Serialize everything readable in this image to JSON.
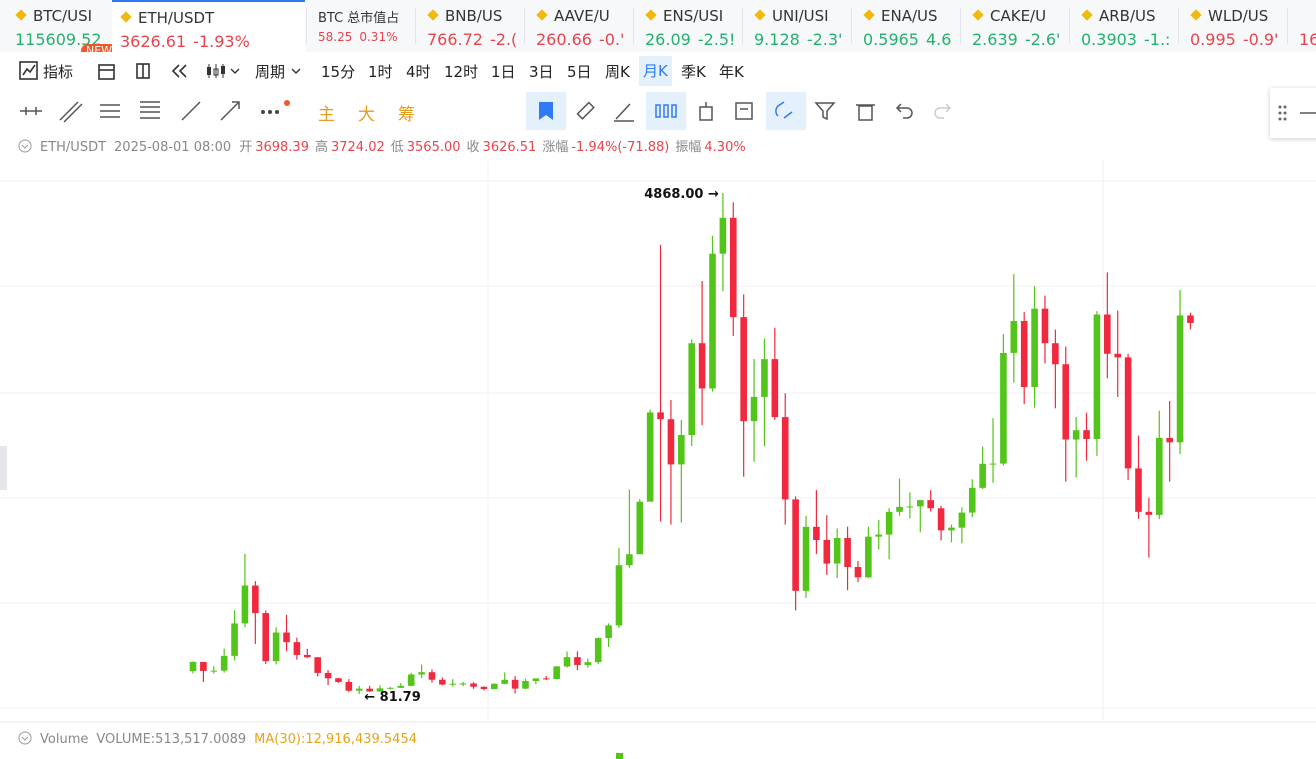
{
  "tickers": [
    {
      "name": "BTC/USI",
      "price": "115609.52",
      "color": "#23b26d",
      "badge": "NEW"
    },
    {
      "name": "ETH/USDT",
      "price": "3626.61",
      "change": "-1.93%",
      "color": "#e8444e"
    },
    {
      "name": "BTC 总市值占",
      "price": "58.25",
      "change": "0.31%",
      "color": "#e8444e"
    },
    {
      "name": "BNB/US",
      "price": "766.72",
      "change": "-2.(",
      "color": "#e8444e"
    },
    {
      "name": "AAVE/U",
      "price": "260.66",
      "change": "-0.'",
      "color": "#e8444e"
    },
    {
      "name": "ENS/USI",
      "price": "26.09",
      "change": "-2.5!",
      "color": "#23b26d"
    },
    {
      "name": "UNI/USI",
      "price": "9.128",
      "change": "-2.3'",
      "color": "#23b26d"
    },
    {
      "name": "ENA/US",
      "price": "0.5965",
      "change": "4.6",
      "color": "#23b26d"
    },
    {
      "name": "CAKE/U",
      "price": "2.639",
      "change": "-2.6'",
      "color": "#23b26d"
    },
    {
      "name": "ARB/US",
      "price": "0.3903",
      "change": "-1.:",
      "color": "#23b26d"
    },
    {
      "name": "WLD/US",
      "price": "0.995",
      "change": "-0.9'",
      "color": "#e8444e"
    },
    {
      "price": "16",
      "color": "#e8444e"
    }
  ],
  "toolbar": {
    "indicator": "指标",
    "period": "周期",
    "periods": [
      "15分",
      "1时",
      "4时",
      "12时",
      "1日",
      "3日",
      "5日",
      "周K",
      "月K",
      "季K",
      "年K"
    ],
    "selected": "月K",
    "overlays": [
      "主",
      "大",
      "筹"
    ]
  },
  "info": {
    "symbol": "ETH/USDT",
    "time": "2025-08-01 08:00",
    "fields": [
      {
        "label": "开",
        "value": "3698.39"
      },
      {
        "label": "高",
        "value": "3724.02"
      },
      {
        "label": "低",
        "value": "3565.00"
      },
      {
        "label": "收",
        "value": "3626.51"
      },
      {
        "label": "涨幅",
        "value": "-1.94%(-71.88)"
      },
      {
        "label": "振幅",
        "value": "4.30%"
      }
    ]
  },
  "volume": {
    "title": "Volume",
    "volume": "VOLUME:513,517.0089",
    "ma": "MA(30):12,916,439.5454"
  },
  "chart_data": {
    "type": "candlestick",
    "up_color": "#52c41a",
    "down_color": "#f0293e",
    "annotations": [
      "4868.00",
      "81.79"
    ],
    "open": [
      301,
      388,
      302,
      305,
      446,
      756,
      1118,
      855,
      396,
      669,
      577,
      455,
      433,
      283,
      232,
      197,
      113,
      133,
      106,
      136,
      141,
      160,
      268,
      290,
      218,
      172,
      180,
      182,
      151,
      129,
      179,
      217,
      133,
      206,
      231,
      225,
      345,
      434,
      359,
      386,
      616,
      737,
      1312,
      1417,
      1919,
      2772,
      2707,
      2275,
      2556,
      3433,
      3001,
      4288,
      4631,
      3682,
      2688,
      2920,
      3281,
      2727,
      1941,
      1067,
      1679,
      1553,
      1328,
      1572,
      1295,
      1196,
      1585,
      1605,
      1822,
      1869,
      1874,
      1934,
      1856,
      1645,
      1671,
      1815,
      2051,
      2281,
      2283,
      3340,
      3645,
      3014,
      3763,
      3433,
      3232,
      2513,
      2602,
      2518,
      3707,
      3332,
      3298,
      2237,
      1822,
      1793,
      2528,
      2486,
      3698.39
    ],
    "high": [
      394,
      389,
      348,
      515,
      881,
      1420,
      1160,
      880,
      719,
      838,
      620,
      514,
      435,
      310,
      237,
      224,
      158,
      160,
      165,
      148,
      185,
      285,
      362,
      317,
      240,
      224,
      197,
      195,
      154,
      185,
      288,
      253,
      228,
      227,
      253,
      351,
      488,
      489,
      419,
      623,
      756,
      1476,
      2036,
      1943,
      2798,
      4372,
      2891,
      2700,
      3470,
      4027,
      4460,
      4868,
      4778,
      3900,
      3282,
      3478,
      3580,
      2955,
      1970,
      1785,
      2030,
      1790,
      1663,
      1680,
      1352,
      1680,
      1743,
      1857,
      2141,
      2008,
      1930,
      2029,
      1880,
      1700,
      1865,
      2133,
      2445,
      2717,
      3522,
      4093,
      3730,
      3977,
      3887,
      3563,
      3400,
      2728,
      2770,
      3740,
      4109,
      3744,
      3332,
      2550,
      1955,
      2788,
      2880,
      3941,
      3724.02
    ],
    "low": [
      278,
      197,
      276,
      286,
      400,
      720,
      560,
      368,
      365,
      490,
      410,
      425,
      250,
      167,
      188,
      100,
      81.79,
      102,
      101,
      125,
      138,
      155,
      233,
      192,
      165,
      152,
      158,
      131,
      116,
      127,
      175,
      86,
      127,
      176,
      214,
      224,
      334,
      308,
      334,
      368,
      531,
      714,
      1288,
      1426,
      1930,
      1728,
      1700,
      1718,
      2450,
      2651,
      2970,
      3930,
      3503,
      2159,
      2300,
      2450,
      2700,
      1700,
      880,
      1000,
      1420,
      1220,
      1190,
      1073,
      1150,
      1190,
      1461,
      1368,
      1785,
      1760,
      1626,
      1825,
      1550,
      1530,
      1521,
      1770,
      2040,
      2100,
      2266,
      3056,
      2852,
      2817,
      3240,
      2811,
      2111,
      2150,
      2310,
      2357,
      3098,
      2920,
      2125,
      1754,
      1385,
      1752,
      2111,
      2373,
      3565.0
    ],
    "close": [
      388,
      302,
      305,
      446,
      756,
      1118,
      855,
      396,
      669,
      577,
      455,
      433,
      283,
      232,
      197,
      113,
      133,
      106,
      136,
      141,
      160,
      268,
      290,
      218,
      172,
      180,
      182,
      151,
      129,
      179,
      217,
      133,
      206,
      231,
      225,
      345,
      434,
      359,
      386,
      616,
      737,
      1312,
      1417,
      1919,
      2772,
      2707,
      2275,
      2556,
      3433,
      3001,
      4288,
      4631,
      3682,
      2688,
      2920,
      3281,
      2727,
      1941,
      1067,
      1679,
      1553,
      1328,
      1572,
      1295,
      1196,
      1585,
      1605,
      1822,
      1869,
      1874,
      1934,
      1856,
      1645,
      1671,
      1815,
      2051,
      2281,
      2283,
      3340,
      3645,
      3014,
      3763,
      3433,
      3232,
      2513,
      2602,
      2518,
      3707,
      3332,
      3298,
      2237,
      1822,
      1793,
      2528,
      2486,
      3698.39,
      3626.51
    ]
  }
}
